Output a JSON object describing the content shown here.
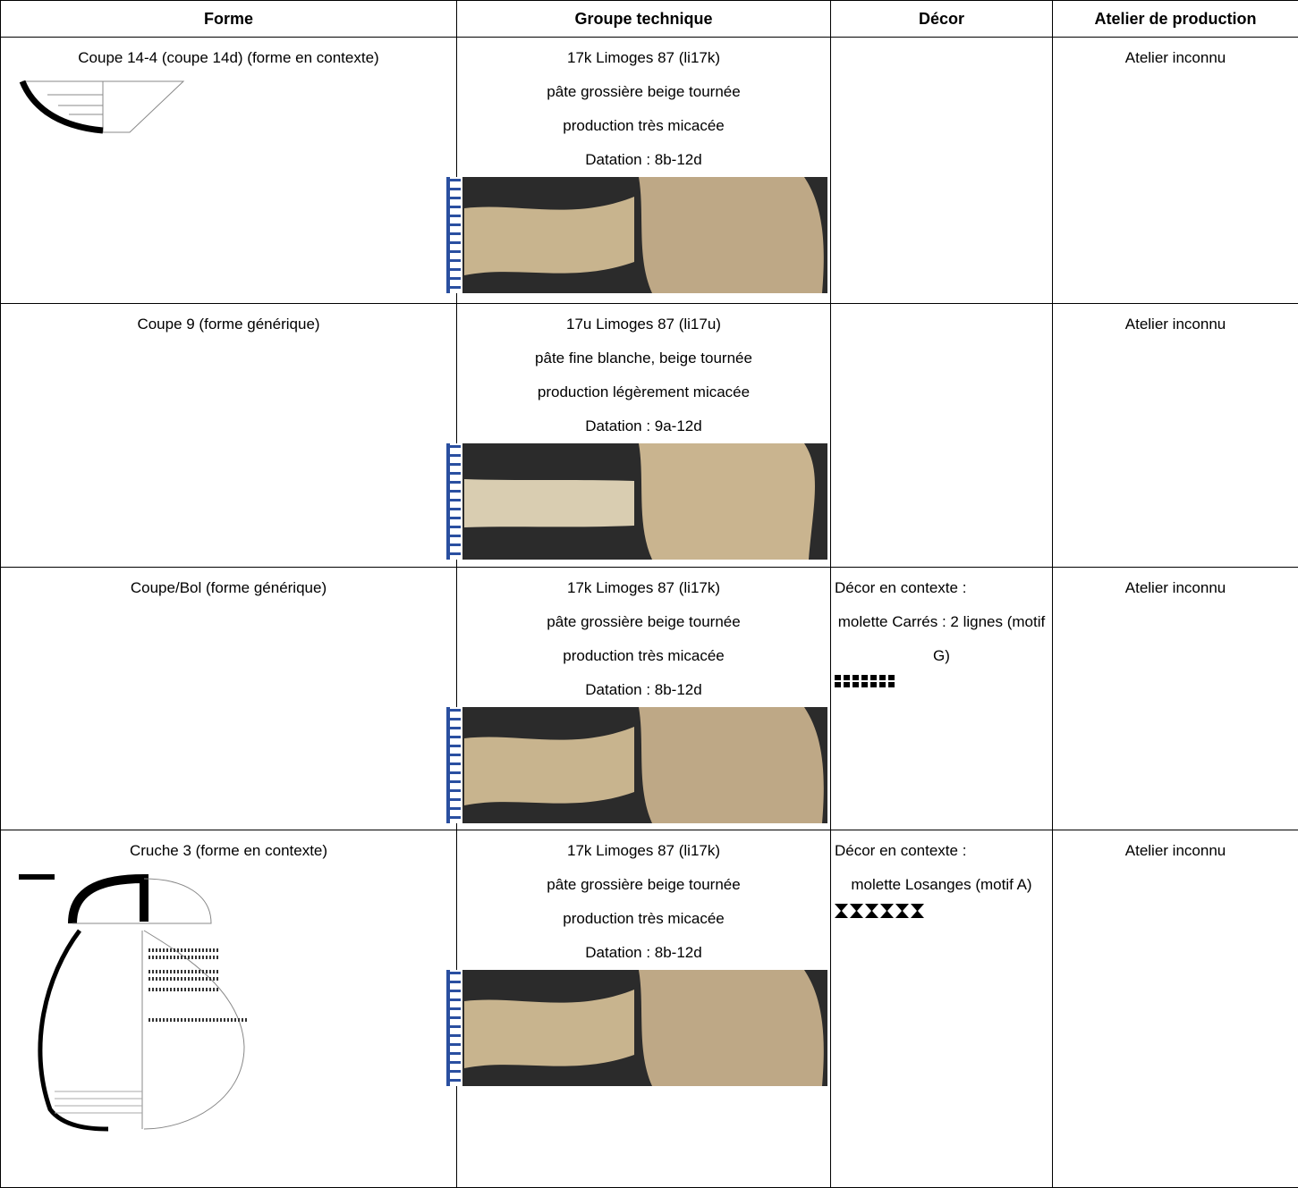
{
  "table": {
    "header": [
      "Forme",
      "Groupe technique",
      "Décor",
      "Atelier de production"
    ],
    "rows": [
      {
        "forme": "Coupe 14-4 (coupe 14d) (forme  en contexte)",
        "groupe": [
          "17k Limoges 87 (li17k)",
          "pâte grossière beige tournée",
          "production très micacée",
          "Datation : 8b-12d"
        ],
        "decor": [],
        "atelier": "Atelier inconnu"
      },
      {
        "forme": "Coupe 9 (forme  générique)",
        "groupe": [
          "17u Limoges 87 (li17u)",
          "pâte fine blanche, beige tournée",
          "production légèrement micacée",
          "Datation : 9a-12d"
        ],
        "decor": [],
        "atelier": "Atelier inconnu"
      },
      {
        "forme": "Coupe/Bol (forme  générique)",
        "groupe": [
          "17k Limoges 87 (li17k)",
          "pâte grossière beige tournée",
          "production très micacée",
          "Datation : 8b-12d"
        ],
        "decor": [
          "Décor en contexte :",
          "molette Carrés : 2 lignes (motif G)"
        ],
        "atelier": "Atelier inconnu"
      },
      {
        "forme": "Cruche 3 (forme  en contexte)",
        "groupe": [
          "17k Limoges 87 (li17k)",
          "pâte grossière beige tournée",
          "production très micacée",
          "Datation : 8b-12d"
        ],
        "decor": [
          "Décor en contexte :",
          "molette Losanges (motif A)"
        ],
        "atelier": "Atelier inconnu"
      }
    ]
  }
}
